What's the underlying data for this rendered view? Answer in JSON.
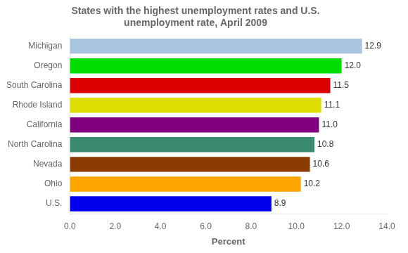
{
  "chart_data": {
    "type": "bar",
    "orientation": "horizontal",
    "title": "States with the highest unemployment rates and U.S.\nunemployment rate, April 2009",
    "categories": [
      "Michigan",
      "Oregon",
      "South Carolina",
      "Rhode Island",
      "California",
      "North Carolina",
      "Nevada",
      "Ohio",
      "U.S."
    ],
    "values": [
      12.9,
      12.0,
      11.5,
      11.1,
      11.0,
      10.8,
      10.6,
      10.2,
      8.9
    ],
    "value_labels": [
      "12.9",
      "12.0",
      "11.5",
      "11.1",
      "11.0",
      "10.8",
      "10.6",
      "10.2",
      "8.9"
    ],
    "data_labels": true,
    "colors": [
      "#A8C4E0",
      "#00DD00",
      "#DD0000",
      "#DDDD00",
      "#800080",
      "#3A8A6E",
      "#8B3A00",
      "#FFA500",
      "#0000EE"
    ],
    "xlabel": "Percent",
    "xlim": [
      0,
      14.0
    ],
    "xticks": [
      {
        "value": 0.0,
        "label": "0.0"
      },
      {
        "value": 2.0,
        "label": "2.0"
      },
      {
        "value": 4.0,
        "label": "4.0"
      },
      {
        "value": 6.0,
        "label": "6.0"
      },
      {
        "value": 8.0,
        "label": "8.0"
      },
      {
        "value": 10.0,
        "label": "10.0"
      },
      {
        "value": 12.0,
        "label": "12.0"
      },
      {
        "value": 14.0,
        "label": "14.0"
      }
    ],
    "grid": false
  }
}
